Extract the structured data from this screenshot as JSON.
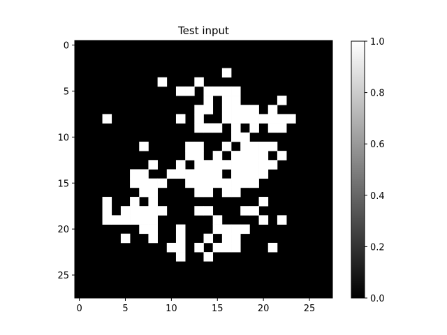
{
  "chart_data": {
    "type": "heatmap",
    "title": "Test input",
    "rows": 28,
    "cols": 28,
    "x_ticks": [
      0,
      5,
      10,
      15,
      20,
      25
    ],
    "y_ticks": [
      0,
      5,
      10,
      15,
      20,
      25
    ],
    "xlim": [
      -0.5,
      27.5
    ],
    "ylim": [
      27.5,
      -0.5
    ],
    "colormap": "gray",
    "colorbar": {
      "range": [
        0.0,
        1.0
      ],
      "ticks": [
        "0.0",
        "0.2",
        "0.4",
        "0.6",
        "0.8",
        "1.0"
      ],
      "position": "right"
    },
    "low_color": "#000000",
    "high_color": "#ffffff",
    "grid": false,
    "white_pixels": [
      [
        3,
        16
      ],
      [
        4,
        9
      ],
      [
        4,
        13
      ],
      [
        5,
        11
      ],
      [
        5,
        12
      ],
      [
        5,
        14
      ],
      [
        5,
        15
      ],
      [
        5,
        16
      ],
      [
        5,
        17
      ],
      [
        6,
        14
      ],
      [
        6,
        16
      ],
      [
        6,
        17
      ],
      [
        6,
        22
      ],
      [
        7,
        13
      ],
      [
        7,
        14
      ],
      [
        7,
        16
      ],
      [
        7,
        17
      ],
      [
        7,
        18
      ],
      [
        7,
        19
      ],
      [
        7,
        21
      ],
      [
        8,
        3
      ],
      [
        8,
        11
      ],
      [
        8,
        13
      ],
      [
        8,
        16
      ],
      [
        8,
        17
      ],
      [
        8,
        18
      ],
      [
        8,
        19
      ],
      [
        8,
        20
      ],
      [
        8,
        21
      ],
      [
        8,
        22
      ],
      [
        8,
        23
      ],
      [
        9,
        13
      ],
      [
        9,
        14
      ],
      [
        9,
        15
      ],
      [
        9,
        17
      ],
      [
        9,
        19
      ],
      [
        9,
        21
      ],
      [
        9,
        22
      ],
      [
        10,
        17
      ],
      [
        10,
        18
      ],
      [
        11,
        7
      ],
      [
        11,
        12
      ],
      [
        11,
        13
      ],
      [
        11,
        16
      ],
      [
        11,
        18
      ],
      [
        11,
        19
      ],
      [
        11,
        20
      ],
      [
        11,
        21
      ],
      [
        12,
        12
      ],
      [
        12,
        13
      ],
      [
        12,
        15
      ],
      [
        12,
        17
      ],
      [
        12,
        18
      ],
      [
        12,
        19
      ],
      [
        12,
        20
      ],
      [
        12,
        22
      ],
      [
        13,
        8
      ],
      [
        13,
        11
      ],
      [
        13,
        13
      ],
      [
        13,
        14
      ],
      [
        13,
        15
      ],
      [
        13,
        16
      ],
      [
        13,
        17
      ],
      [
        13,
        18
      ],
      [
        13,
        19
      ],
      [
        13,
        20
      ],
      [
        13,
        21
      ],
      [
        14,
        6
      ],
      [
        14,
        7
      ],
      [
        14,
        10
      ],
      [
        14,
        11
      ],
      [
        14,
        12
      ],
      [
        14,
        13
      ],
      [
        14,
        14
      ],
      [
        14,
        15
      ],
      [
        14,
        17
      ],
      [
        14,
        18
      ],
      [
        14,
        19
      ],
      [
        14,
        20
      ],
      [
        15,
        6
      ],
      [
        15,
        7
      ],
      [
        15,
        8
      ],
      [
        15,
        9
      ],
      [
        15,
        12
      ],
      [
        15,
        13
      ],
      [
        15,
        14
      ],
      [
        15,
        15
      ],
      [
        15,
        16
      ],
      [
        15,
        17
      ],
      [
        15,
        18
      ],
      [
        15,
        19
      ],
      [
        16,
        7
      ],
      [
        16,
        8
      ],
      [
        16,
        13
      ],
      [
        16,
        14
      ],
      [
        16,
        16
      ],
      [
        16,
        17
      ],
      [
        17,
        3
      ],
      [
        17,
        6
      ],
      [
        17,
        8
      ],
      [
        17,
        20
      ],
      [
        18,
        3
      ],
      [
        18,
        5
      ],
      [
        18,
        6
      ],
      [
        18,
        7
      ],
      [
        18,
        8
      ],
      [
        18,
        9
      ],
      [
        18,
        13
      ],
      [
        18,
        14
      ],
      [
        18,
        18
      ],
      [
        18,
        19
      ],
      [
        19,
        3
      ],
      [
        19,
        4
      ],
      [
        19,
        5
      ],
      [
        19,
        6
      ],
      [
        19,
        7
      ],
      [
        19,
        8
      ],
      [
        19,
        15
      ],
      [
        19,
        20
      ],
      [
        19,
        22
      ],
      [
        20,
        7
      ],
      [
        20,
        8
      ],
      [
        20,
        11
      ],
      [
        20,
        15
      ],
      [
        20,
        16
      ],
      [
        20,
        17
      ],
      [
        20,
        18
      ],
      [
        21,
        5
      ],
      [
        21,
        8
      ],
      [
        21,
        11
      ],
      [
        21,
        14
      ],
      [
        21,
        16
      ],
      [
        21,
        17
      ],
      [
        22,
        10
      ],
      [
        22,
        11
      ],
      [
        22,
        13
      ],
      [
        22,
        15
      ],
      [
        22,
        16
      ],
      [
        22,
        17
      ],
      [
        22,
        21
      ],
      [
        23,
        11
      ],
      [
        23,
        14
      ]
    ]
  }
}
